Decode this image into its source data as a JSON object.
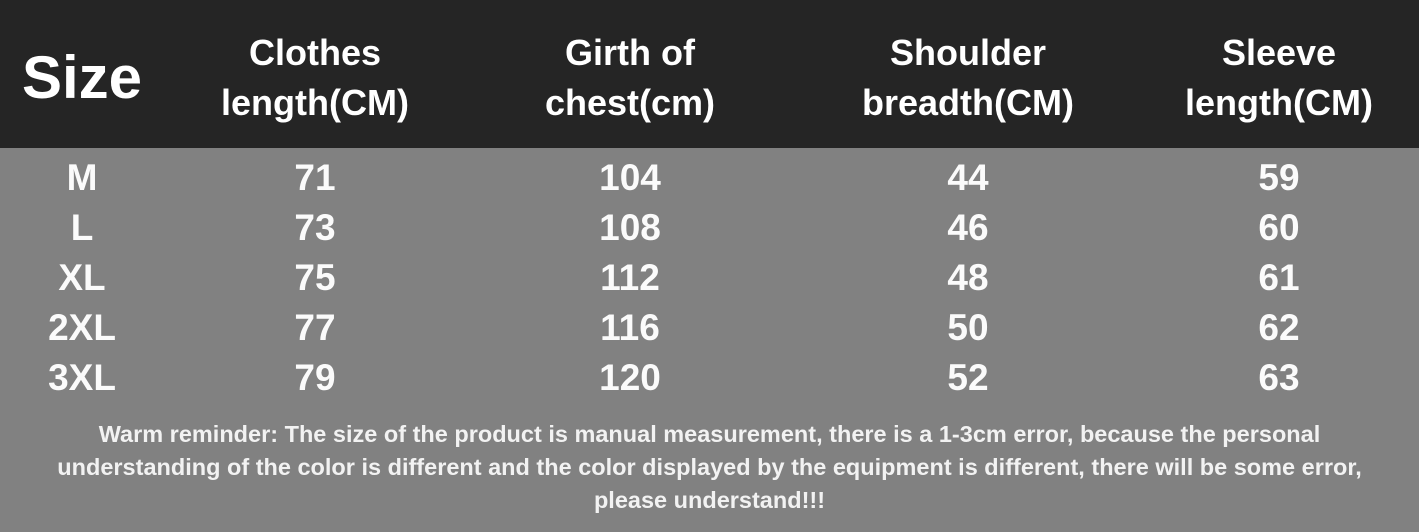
{
  "table": {
    "header": [
      [
        "Size"
      ],
      [
        "Clothes",
        "length(CM)"
      ],
      [
        "Girth of",
        "chest(cm)"
      ],
      [
        "Shoulder",
        "breadth(CM)"
      ],
      [
        "Sleeve",
        "length(CM)"
      ]
    ],
    "rows": [
      [
        "M",
        "71",
        "104",
        "44",
        "59"
      ],
      [
        "L",
        "73",
        "108",
        "46",
        "60"
      ],
      [
        "XL",
        "75",
        "112",
        "48",
        "61"
      ],
      [
        "2XL",
        "77",
        "116",
        "50",
        "62"
      ],
      [
        "3XL",
        "79",
        "120",
        "52",
        "63"
      ]
    ]
  },
  "note": "Warm reminder: The size of the product is manual measurement, there is a 1-3cm error, because the personal understanding of the color is different and the color displayed by the equipment is different, there will be some error, please understand!!!"
}
